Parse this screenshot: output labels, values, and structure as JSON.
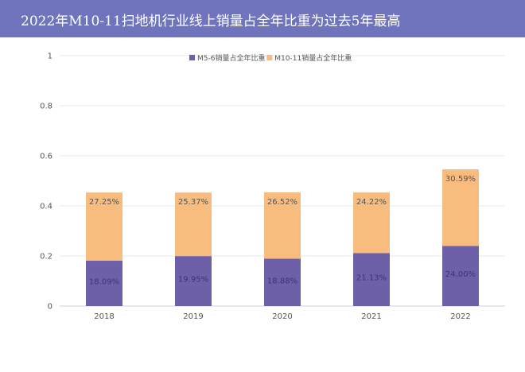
{
  "title": "2022年M10-11扫地机行业线上销量占全年比重为过去5年最高",
  "chart_data": {
    "type": "bar",
    "stacked": true,
    "categories": [
      "2018",
      "2019",
      "2020",
      "2021",
      "2022"
    ],
    "series": [
      {
        "name": "M5-6销量占全年比重",
        "color": "#6d5fa8",
        "label_color": "#3f3478",
        "values": [
          0.1809,
          0.1995,
          0.1888,
          0.2113,
          0.24
        ],
        "labels": [
          "18.09%",
          "19.95%",
          "18.88%",
          "21.13%",
          "24.00%"
        ]
      },
      {
        "name": "M10-11销量占全年比重",
        "color": "#f8bc7f",
        "label_color": "#555555",
        "values": [
          0.2725,
          0.2537,
          0.2652,
          0.2422,
          0.3059
        ],
        "labels": [
          "27.25%",
          "25.37%",
          "26.52%",
          "24.22%",
          "30.59%"
        ]
      }
    ],
    "ylim": [
      0,
      1
    ],
    "yticks": [
      "0",
      "0.2",
      "0.4",
      "0.6",
      "0.8",
      "1"
    ],
    "grid": true,
    "legend_position": "top-right"
  }
}
